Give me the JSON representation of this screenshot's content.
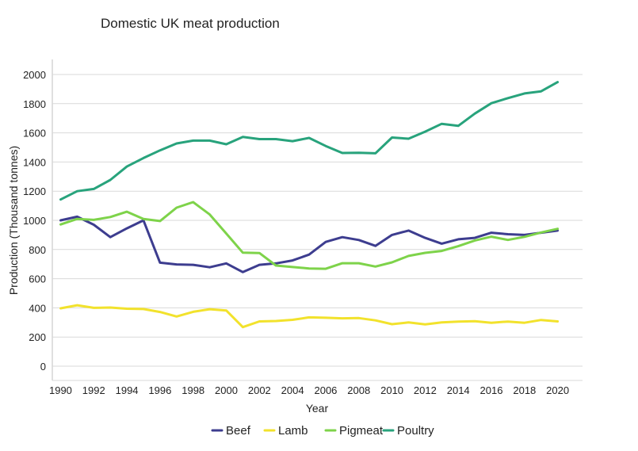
{
  "chart_data": {
    "type": "line",
    "title": "Domestic UK meat production",
    "xlabel": "Year",
    "ylabel": "Production (Thousand tonnes)",
    "xlim": [
      1989.5,
      2021.5
    ],
    "ylim": [
      0,
      2000
    ],
    "yticks": [
      "0",
      "200",
      "400",
      "600",
      "800",
      "1000",
      "1200",
      "1400",
      "1600",
      "1800",
      "2000"
    ],
    "xticks": [
      "1990",
      "1992",
      "1994",
      "1996",
      "1998",
      "2000",
      "2002",
      "2004",
      "2006",
      "2008",
      "2010",
      "2012",
      "2014",
      "2016",
      "2018",
      "2020"
    ],
    "grid": "horizontal",
    "legend_position": "bottom",
    "x": [
      1990,
      1991,
      1992,
      1993,
      1994,
      1995,
      1996,
      1997,
      1998,
      1999,
      2000,
      2001,
      2002,
      2003,
      2004,
      2005,
      2006,
      2007,
      2008,
      2009,
      2010,
      2011,
      2012,
      2013,
      2014,
      2015,
      2016,
      2017,
      2018,
      2019,
      2020
    ],
    "series": [
      {
        "name": "Beef",
        "color": "#3d3d8f",
        "values": [
          1000,
          1025,
          970,
          885,
          945,
          1000,
          710,
          698,
          695,
          678,
          705,
          645,
          695,
          705,
          725,
          765,
          852,
          885,
          865,
          825,
          900,
          930,
          880,
          840,
          870,
          880,
          915,
          905,
          900,
          915,
          930
        ]
      },
      {
        "name": "Lamb",
        "color": "#f2e22c",
        "values": [
          397,
          418,
          400,
          402,
          394,
          392,
          372,
          341,
          373,
          391,
          382,
          268,
          307,
          310,
          318,
          335,
          332,
          328,
          330,
          314,
          288,
          300,
          287,
          300,
          306,
          308,
          298,
          306,
          298,
          317,
          307
        ]
      },
      {
        "name": "Pigmeat",
        "color": "#7ed34a",
        "values": [
          972,
          1010,
          1003,
          1023,
          1059,
          1010,
          995,
          1087,
          1125,
          1040,
          910,
          778,
          776,
          690,
          680,
          670,
          668,
          706,
          706,
          683,
          712,
          756,
          777,
          790,
          823,
          862,
          888,
          866,
          887,
          917,
          942
        ]
      },
      {
        "name": "Poultry",
        "color": "#28a37c",
        "values": [
          1143,
          1200,
          1215,
          1277,
          1369,
          1427,
          1480,
          1527,
          1547,
          1547,
          1522,
          1572,
          1557,
          1557,
          1543,
          1565,
          1510,
          1462,
          1463,
          1460,
          1568,
          1560,
          1608,
          1662,
          1648,
          1732,
          1803,
          1838,
          1870,
          1885,
          1948
        ]
      }
    ]
  }
}
